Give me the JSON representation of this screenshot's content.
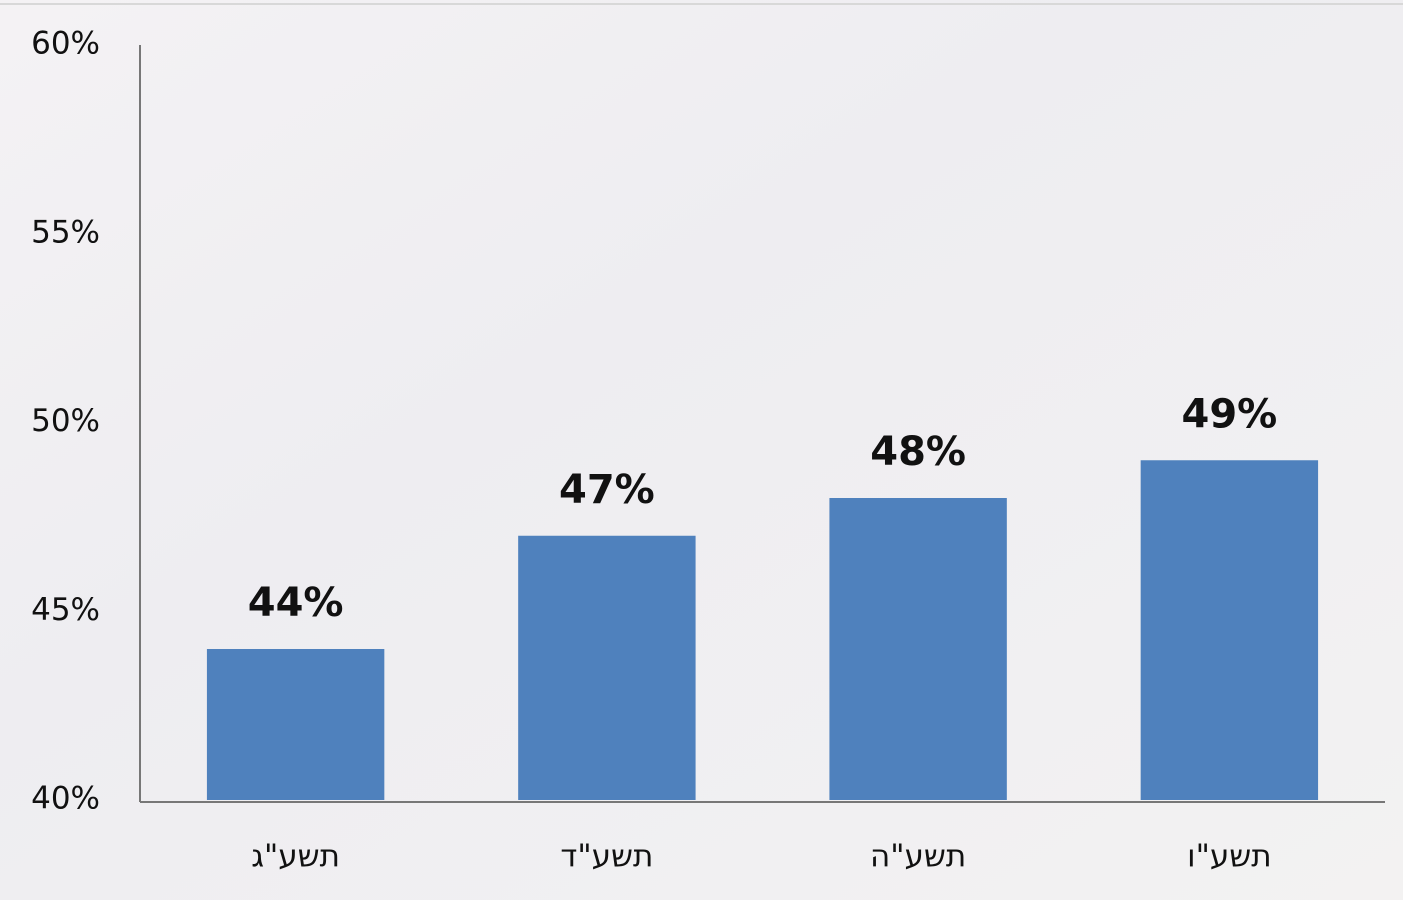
{
  "chart_data": {
    "type": "bar",
    "categories": [
      "תשע\"ג",
      "תשע\"ד",
      "תשע\"ה",
      "תשע\"ו"
    ],
    "values": [
      44,
      47,
      48,
      49
    ],
    "value_labels": [
      "44%",
      "47%",
      "48%",
      "49%"
    ],
    "color": "#4f81bd",
    "ylim": [
      40,
      60
    ],
    "yticks": [
      {
        "value": 40,
        "label": "40%"
      },
      {
        "value": 45,
        "label": "45%"
      },
      {
        "value": 50,
        "label": "50%"
      },
      {
        "value": 55,
        "label": "55%"
      },
      {
        "value": 60,
        "label": "60%"
      }
    ],
    "grid": false
  }
}
